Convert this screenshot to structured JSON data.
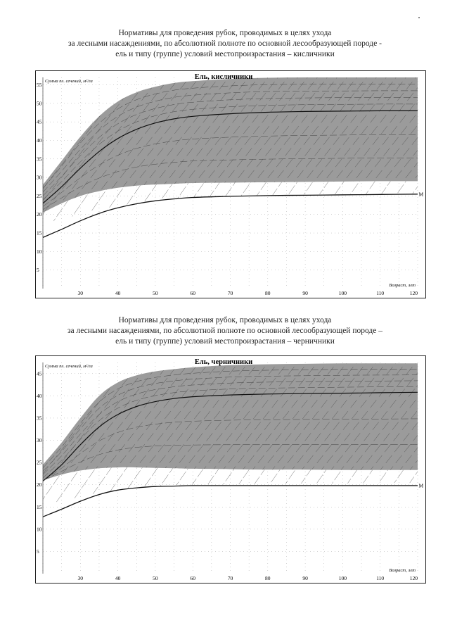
{
  "headings": [
    {
      "lines": [
        "Нормативы для проведения рубок, проводимых в целях ухода",
        "за лесными насаждениями, по абсолютной полноте по основной лесообразующей породе -",
        "ель и типу (группе) условий местопроизрастания – кисличники"
      ]
    },
    {
      "lines": [
        "Нормативы для проведения рубок, проводимых в целях ухода",
        "за лесными насаждениями, по абсолютной полноте по основной лесообразующей породе –",
        "ель и типу (группе) условий местопроизрастания – черничники"
      ]
    }
  ],
  "chart_data": [
    {
      "type": "area",
      "title": "Ель, кисличники",
      "ylabel": "Сумма пл. сечений, м²/га",
      "xlabel": "Возраст, лет",
      "xlim": [
        20,
        120
      ],
      "ylim": [
        0,
        57
      ],
      "x_ticks": [
        30,
        40,
        50,
        60,
        70,
        80,
        90,
        100,
        110,
        120
      ],
      "y_ticks": [
        5,
        10,
        15,
        20,
        25,
        30,
        35,
        40,
        45,
        50,
        55
      ],
      "grid": "dotted",
      "line_label": "М",
      "colors": {
        "band": "#9b9b9b",
        "line": "#111111"
      },
      "x": [
        20,
        25,
        30,
        35,
        40,
        45,
        50,
        55,
        60,
        70,
        80,
        90,
        100,
        110,
        120
      ],
      "series": [
        {
          "role": "upper",
          "values": [
            28,
            34.5,
            41,
            46.5,
            50.5,
            53,
            54.5,
            55.5,
            56,
            56.6,
            56.9,
            57,
            57,
            57,
            57
          ]
        },
        {
          "role": "mid",
          "values": [
            23,
            27.5,
            32.5,
            37,
            40.5,
            43,
            44.7,
            45.8,
            46.5,
            47.2,
            47.6,
            47.8,
            47.9,
            48,
            48
          ]
        },
        {
          "role": "lower",
          "values": [
            20.5,
            23,
            25,
            26.3,
            27.2,
            27.8,
            28.1,
            28.3,
            28.5,
            28.6,
            28.7,
            28.8,
            28.9,
            29,
            29
          ]
        },
        {
          "role": "hatch-lower",
          "values": [
            17.5,
            18.8,
            20,
            21.2,
            22.2,
            23,
            23.6,
            24,
            24.4,
            24.8,
            25.2,
            25.4,
            25.5,
            25.5,
            25.5
          ]
        },
        {
          "role": "min",
          "values": [
            13.8,
            16,
            18.3,
            20.3,
            21.8,
            22.9,
            23.7,
            24.2,
            24.6,
            24.9,
            25.1,
            25.2,
            25.3,
            25.4,
            25.5
          ]
        }
      ]
    },
    {
      "type": "area",
      "title": "Ель, черничники",
      "ylabel": "Сумма пл. сечений, м²/га",
      "xlabel": "Возраст, лет",
      "xlim": [
        20,
        120
      ],
      "ylim": [
        0,
        47.5
      ],
      "x_ticks": [
        30,
        40,
        50,
        60,
        70,
        80,
        90,
        100,
        110,
        120
      ],
      "y_ticks": [
        5,
        10,
        15,
        20,
        25,
        30,
        35,
        40,
        45
      ],
      "grid": "dotted",
      "line_label": "М",
      "colors": {
        "band": "#9b9b9b",
        "line": "#111111"
      },
      "x": [
        20,
        25,
        30,
        35,
        40,
        45,
        50,
        55,
        60,
        70,
        80,
        90,
        100,
        110,
        120
      ],
      "series": [
        {
          "role": "upper",
          "values": [
            24.5,
            29.5,
            35,
            40,
            43,
            44.6,
            45.5,
            46,
            46.4,
            46.9,
            47.1,
            47.2,
            47.3,
            47.3,
            47.3
          ]
        },
        {
          "role": "mid",
          "values": [
            20.8,
            24.5,
            29,
            33,
            35.8,
            37.6,
            38.7,
            39.4,
            39.8,
            40.2,
            40.4,
            40.5,
            40.6,
            40.7,
            40.8
          ]
        },
        {
          "role": "lower",
          "values": [
            21,
            22.3,
            23.2,
            23.7,
            23.9,
            23.9,
            23.8,
            23.7,
            23.6,
            23.5,
            23.4,
            23.4,
            23.3,
            23.3,
            23.3
          ]
        },
        {
          "role": "hatch-lower",
          "values": [
            15,
            16.2,
            17.3,
            18.2,
            18.9,
            19.4,
            19.7,
            19.9,
            20,
            20.1,
            20.2,
            20.3,
            20.3,
            20.4,
            20.4
          ]
        },
        {
          "role": "min",
          "values": [
            12.8,
            14.5,
            16.3,
            17.8,
            18.8,
            19.3,
            19.6,
            19.7,
            19.8,
            19.8,
            19.8,
            19.8,
            19.8,
            19.8,
            19.8
          ]
        }
      ]
    }
  ]
}
